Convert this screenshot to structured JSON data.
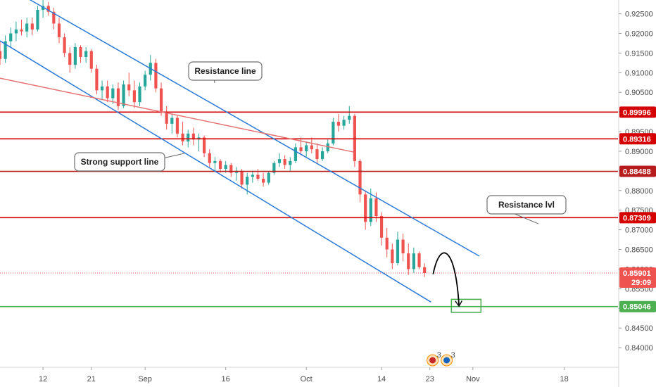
{
  "chart_data": {
    "type": "candlestick",
    "symbol_context": "forex pair, daily-like candles, descending channel",
    "y_axis": {
      "side": "right",
      "ylim": [
        0.835,
        0.9285
      ],
      "tick_labels": [
        "0.92500",
        "0.92000",
        "0.91500",
        "0.91000",
        "0.90500",
        "0.90000",
        "0.89500",
        "0.89000",
        "0.88500",
        "0.88000",
        "0.87500",
        "0.87000",
        "0.86500",
        "0.86000",
        "0.85500",
        "0.85000",
        "0.84500",
        "0.84000"
      ],
      "tick_values": [
        0.925,
        0.92,
        0.915,
        0.91,
        0.905,
        0.9,
        0.895,
        0.89,
        0.885,
        0.88,
        0.875,
        0.87,
        0.865,
        0.86,
        0.855,
        0.85,
        0.845,
        0.84
      ]
    },
    "x_axis": {
      "tick_labels": [
        "12",
        "21",
        "Sep",
        "16",
        "Oct",
        "14",
        "23",
        "Nov",
        "18"
      ],
      "tick_day_index": [
        0,
        9,
        19,
        34,
        49,
        63,
        72,
        80,
        97
      ],
      "xlim_days": [
        -8,
        107
      ]
    },
    "price_levels": [
      {
        "label": "0.89996",
        "value": 0.89996,
        "color": "#d50000"
      },
      {
        "label": "0.89316",
        "value": 0.89316,
        "color": "#d50000"
      },
      {
        "label": "0.88488",
        "value": 0.88488,
        "color": "#b71c1c"
      },
      {
        "label": "0.87309",
        "value": 0.87309,
        "color": "#d50000"
      },
      {
        "label": "0.85046",
        "value": 0.85046,
        "color": "#4caf50"
      }
    ],
    "current_price": {
      "label": "0.85901",
      "value": 0.85901,
      "countdown": "29:09",
      "color": "#ef5350"
    },
    "channel_lines": [
      {
        "name": "upper",
        "p1": {
          "day": -2.6,
          "price": 0.9287
        },
        "p2": {
          "day": 81.2,
          "price": 0.8633
        },
        "color": "#2b7bd6"
      },
      {
        "name": "lower",
        "p1": {
          "day": -8,
          "price": 0.9181
        },
        "p2": {
          "day": 72.2,
          "price": 0.8516
        },
        "color": "#2b7bd6"
      }
    ],
    "trend_line": {
      "p1": {
        "day": -8,
        "price": 0.9086
      },
      "p2": {
        "day": 57.8,
        "price": 0.8898
      },
      "color": "#e57373"
    },
    "candles": [
      [
        -8,
        0.9155,
        0.918,
        0.912,
        0.9135
      ],
      [
        -7,
        0.9135,
        0.9195,
        0.9125,
        0.918
      ],
      [
        -6,
        0.918,
        0.9215,
        0.9165,
        0.92
      ],
      [
        -5,
        0.92,
        0.923,
        0.918,
        0.921
      ],
      [
        -4,
        0.921,
        0.9235,
        0.9195,
        0.9205
      ],
      [
        -3,
        0.9205,
        0.924,
        0.919,
        0.9225
      ],
      [
        -2,
        0.9225,
        0.924,
        0.9195,
        0.921
      ],
      [
        -1,
        0.921,
        0.927,
        0.9205,
        0.926
      ],
      [
        0,
        0.926,
        0.9285,
        0.924,
        0.927
      ],
      [
        1,
        0.927,
        0.928,
        0.9245,
        0.9255
      ],
      [
        2,
        0.9255,
        0.9265,
        0.921,
        0.9225
      ],
      [
        3,
        0.9225,
        0.924,
        0.9175,
        0.919
      ],
      [
        4,
        0.919,
        0.92,
        0.914,
        0.915
      ],
      [
        5,
        0.915,
        0.9165,
        0.91,
        0.912
      ],
      [
        6,
        0.912,
        0.9175,
        0.911,
        0.9165
      ],
      [
        7,
        0.9165,
        0.917,
        0.9125,
        0.914
      ],
      [
        8,
        0.914,
        0.9165,
        0.9125,
        0.9155
      ],
      [
        9,
        0.9155,
        0.916,
        0.91,
        0.911
      ],
      [
        10,
        0.911,
        0.912,
        0.9045,
        0.9055
      ],
      [
        11,
        0.9055,
        0.908,
        0.903,
        0.9065
      ],
      [
        12,
        0.9065,
        0.908,
        0.9025,
        0.9035
      ],
      [
        13,
        0.9035,
        0.907,
        0.902,
        0.906
      ],
      [
        14,
        0.906,
        0.9075,
        0.9005,
        0.9015
      ],
      [
        15,
        0.9015,
        0.908,
        0.901,
        0.907
      ],
      [
        16,
        0.907,
        0.91,
        0.904,
        0.9055
      ],
      [
        17,
        0.9055,
        0.908,
        0.901,
        0.9025
      ],
      [
        18,
        0.9025,
        0.9075,
        0.9015,
        0.9065
      ],
      [
        19,
        0.9065,
        0.9105,
        0.9055,
        0.9095
      ],
      [
        20,
        0.9095,
        0.9145,
        0.908,
        0.9125
      ],
      [
        21,
        0.9125,
        0.9135,
        0.905,
        0.906
      ],
      [
        22,
        0.906,
        0.9075,
        0.899,
        0.9
      ],
      [
        23,
        0.9,
        0.9015,
        0.8955,
        0.897
      ],
      [
        24,
        0.897,
        0.8995,
        0.8945,
        0.8985
      ],
      [
        25,
        0.8985,
        0.899,
        0.8935,
        0.8945
      ],
      [
        26,
        0.8945,
        0.8975,
        0.8915,
        0.8925
      ],
      [
        27,
        0.8925,
        0.8955,
        0.891,
        0.8945
      ],
      [
        28,
        0.8945,
        0.896,
        0.8915,
        0.893
      ],
      [
        29,
        0.893,
        0.8945,
        0.89,
        0.8935
      ],
      [
        30,
        0.8935,
        0.894,
        0.8885,
        0.8895
      ],
      [
        31,
        0.8895,
        0.8905,
        0.886,
        0.887
      ],
      [
        32,
        0.887,
        0.8885,
        0.885,
        0.8875
      ],
      [
        33,
        0.8875,
        0.888,
        0.8845,
        0.8855
      ],
      [
        34,
        0.8855,
        0.8875,
        0.8845,
        0.8865
      ],
      [
        35,
        0.8865,
        0.887,
        0.8835,
        0.8845
      ],
      [
        36,
        0.8845,
        0.886,
        0.8825,
        0.885
      ],
      [
        37,
        0.885,
        0.8855,
        0.8805,
        0.8815
      ],
      [
        38,
        0.8815,
        0.8845,
        0.879,
        0.8835
      ],
      [
        39,
        0.8835,
        0.885,
        0.882,
        0.884
      ],
      [
        40,
        0.884,
        0.8855,
        0.8825,
        0.883
      ],
      [
        41,
        0.883,
        0.8845,
        0.881,
        0.882
      ],
      [
        42,
        0.882,
        0.885,
        0.8815,
        0.8845
      ],
      [
        43,
        0.8845,
        0.8875,
        0.884,
        0.887
      ],
      [
        44,
        0.887,
        0.8895,
        0.886,
        0.888
      ],
      [
        45,
        0.888,
        0.889,
        0.8855,
        0.8865
      ],
      [
        46,
        0.8865,
        0.8885,
        0.885,
        0.8875
      ],
      [
        47,
        0.8875,
        0.892,
        0.887,
        0.891
      ],
      [
        48,
        0.891,
        0.8935,
        0.889,
        0.89
      ],
      [
        49,
        0.89,
        0.8925,
        0.8885,
        0.8915
      ],
      [
        50,
        0.8915,
        0.8935,
        0.8895,
        0.8905
      ],
      [
        51,
        0.8905,
        0.892,
        0.887,
        0.888
      ],
      [
        52,
        0.888,
        0.891,
        0.8875,
        0.89
      ],
      [
        53,
        0.89,
        0.893,
        0.8895,
        0.892
      ],
      [
        54,
        0.892,
        0.8985,
        0.8915,
        0.8975
      ],
      [
        55,
        0.8975,
        0.8995,
        0.895,
        0.8965
      ],
      [
        56,
        0.8965,
        0.899,
        0.8955,
        0.898
      ],
      [
        57,
        0.898,
        0.9015,
        0.897,
        0.899
      ],
      [
        58,
        0.899,
        0.8995,
        0.886,
        0.8875
      ],
      [
        59,
        0.8875,
        0.888,
        0.877,
        0.879
      ],
      [
        60,
        0.879,
        0.88,
        0.87,
        0.872
      ],
      [
        61,
        0.872,
        0.8805,
        0.871,
        0.878
      ],
      [
        62,
        0.878,
        0.8795,
        0.872,
        0.8735
      ],
      [
        63,
        0.8735,
        0.8745,
        0.866,
        0.868
      ],
      [
        64,
        0.868,
        0.8705,
        0.863,
        0.865
      ],
      [
        65,
        0.865,
        0.8665,
        0.86,
        0.8615
      ],
      [
        66,
        0.8615,
        0.8695,
        0.861,
        0.8675
      ],
      [
        67,
        0.8675,
        0.869,
        0.862,
        0.864
      ],
      [
        68,
        0.864,
        0.8665,
        0.8585,
        0.86
      ],
      [
        69,
        0.86,
        0.8655,
        0.859,
        0.864
      ],
      [
        70,
        0.864,
        0.8645,
        0.86,
        0.8605
      ],
      [
        71,
        0.8605,
        0.8615,
        0.858,
        0.859
      ]
    ],
    "annotations": [
      {
        "text": "Resistance line",
        "anchor_day": 5.5,
        "anchor_price": 0.915
      },
      {
        "text": "Strong support line",
        "anchor_day": 18,
        "anchor_price": 0.8908
      },
      {
        "text": "Resistance lvl",
        "anchor_day": 90,
        "anchor_price": 0.8725
      }
    ],
    "target_box": {
      "day_from": 76,
      "day_to": 81.5,
      "price_from": 0.849,
      "price_to": 0.8523,
      "color": "#4caf50"
    },
    "projection_arrow": {
      "from": {
        "day": 72.6,
        "price": 0.8587
      },
      "to": {
        "day": 77.4,
        "price": 0.8509
      }
    },
    "events": [
      {
        "label": "3",
        "flag": "GB"
      },
      {
        "label": "3",
        "flag": "AU"
      }
    ],
    "grid": false,
    "legend": "none"
  }
}
